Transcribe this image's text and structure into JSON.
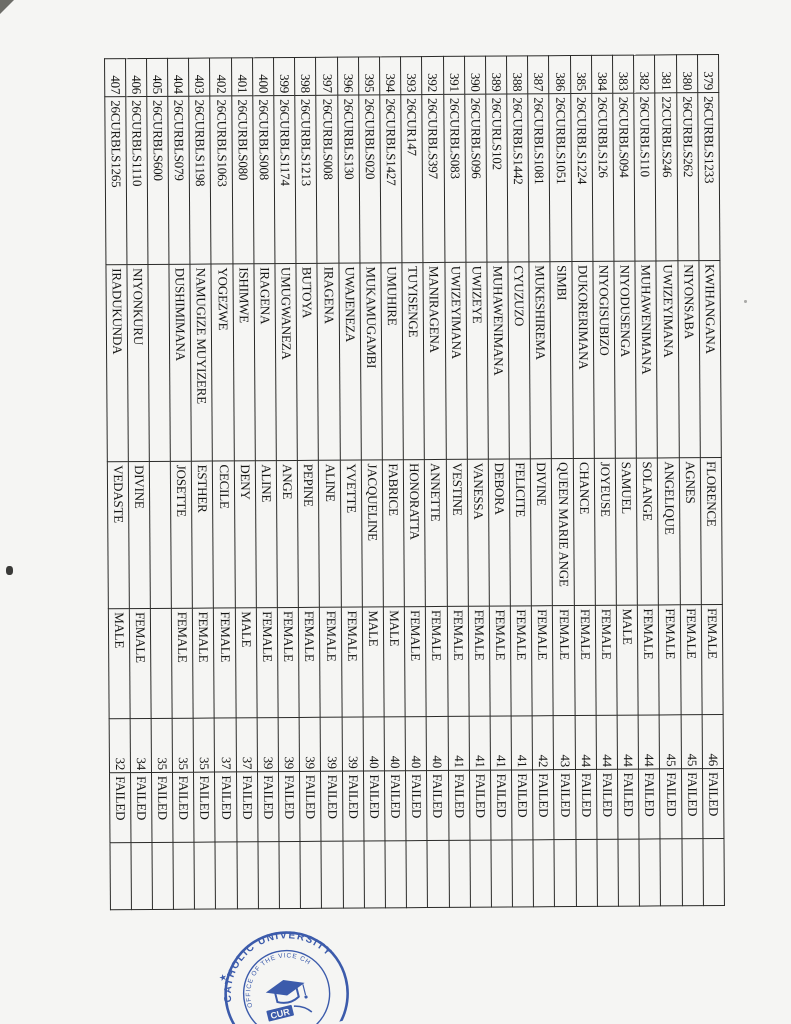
{
  "document": {
    "kind": "scanned results sheet",
    "orientation": "table rotated 90 degrees on portrait page"
  },
  "table": {
    "columns": [
      "no",
      "code",
      "last_name",
      "first_name",
      "gender",
      "marks",
      "status",
      "blank"
    ],
    "rows": [
      {
        "no": "379",
        "code": "26CURBLS1233",
        "last_name": "KWIHANGANA",
        "first_name": "FLORENCE",
        "gender": "FEMALE",
        "marks": "46",
        "status": "FAILED"
      },
      {
        "no": "380",
        "code": "26CURBLS262",
        "last_name": "NIYONSABA",
        "first_name": "AGNES",
        "gender": "FEMALE",
        "marks": "45",
        "status": "FAILED"
      },
      {
        "no": "381",
        "code": "22CURBLS246",
        "last_name": "UWIZEYIMANA",
        "first_name": "ANGELIQUE",
        "gender": "FEMALE",
        "marks": "45",
        "status": "FAILED"
      },
      {
        "no": "382",
        "code": "26CURBLS110",
        "last_name": "MUHAWENIMANA",
        "first_name": "SOLANGE",
        "gender": "FEMALE",
        "marks": "44",
        "status": "FAILED"
      },
      {
        "no": "383",
        "code": "26CURBLS094",
        "last_name": "NIYODUSENGA",
        "first_name": "SAMUEL",
        "gender": "MALE",
        "marks": "44",
        "status": "FAILED"
      },
      {
        "no": "384",
        "code": "26CURBLS126",
        "last_name": "NIYOGISUBIZO",
        "first_name": "JOYEUSE",
        "gender": "FEMALE",
        "marks": "44",
        "status": "FAILED"
      },
      {
        "no": "385",
        "code": "26CURBLS1224",
        "last_name": "DUKORERIMANA",
        "first_name": "CHANCE",
        "gender": "FEMALE",
        "marks": "44",
        "status": "FAILED"
      },
      {
        "no": "386",
        "code": "26CURBLS1051",
        "last_name": "SIMBI",
        "first_name": "QUEEN MARIE ANGE",
        "gender": "FEMALE",
        "marks": "43",
        "status": "FAILED"
      },
      {
        "no": "387",
        "code": "26CURBLS1081",
        "last_name": "MUKESHIREMA",
        "first_name": "DIVINE",
        "gender": "FEMALE",
        "marks": "42",
        "status": "FAILED"
      },
      {
        "no": "388",
        "code": "26CURBLS1442",
        "last_name": "CYUZUZO",
        "first_name": "FELICITE",
        "gender": "FEMALE",
        "marks": "41",
        "status": "FAILED"
      },
      {
        "no": "389",
        "code": "26CURLS102",
        "last_name": "MUHAWENIMANA",
        "first_name": "DEBORA",
        "gender": "FEMALE",
        "marks": "41",
        "status": "FAILED"
      },
      {
        "no": "390",
        "code": "26CURBLS096",
        "last_name": "UWIZEYE",
        "first_name": "VANESSA",
        "gender": "FEMALE",
        "marks": "41",
        "status": "FAILED"
      },
      {
        "no": "391",
        "code": "26CURBLS083",
        "last_name": "UWIZEYIMANA",
        "first_name": "VESTINE",
        "gender": "FEMALE",
        "marks": "41",
        "status": "FAILED"
      },
      {
        "no": "392",
        "code": "26CURBLS397",
        "last_name": "MANIRAGENA",
        "first_name": "ANNETTE",
        "gender": "FEMALE",
        "marks": "40",
        "status": "FAILED"
      },
      {
        "no": "393",
        "code": "26CUR147",
        "last_name": "TUYISENGE",
        "first_name": "HONORATTA",
        "gender": "FEMALE",
        "marks": "40",
        "status": "FAILED"
      },
      {
        "no": "394",
        "code": "26CURBLS1427",
        "last_name": "UMUHIRE",
        "first_name": "FABRICE",
        "gender": "MALE",
        "marks": "40",
        "status": "FAILED"
      },
      {
        "no": "395",
        "code": "26CURBLS020",
        "last_name": "MUKAMUGAMBI",
        "first_name": "JACQUELINE",
        "gender": "MALE",
        "marks": "40",
        "status": "FAILED"
      },
      {
        "no": "396",
        "code": "26CURBLS130",
        "last_name": "UWAJENEZA",
        "first_name": "YVETTE",
        "gender": "FEMALE",
        "marks": "39",
        "status": "FAILED"
      },
      {
        "no": "397",
        "code": "26CURBLS008",
        "last_name": "IRAGENA",
        "first_name": "ALINE",
        "gender": "FEMALE",
        "marks": "39",
        "status": "FAILED"
      },
      {
        "no": "398",
        "code": "26CURBLS1213",
        "last_name": "BUTOYA",
        "first_name": "PEPINE",
        "gender": "FEMALE",
        "marks": "39",
        "status": "FAILED"
      },
      {
        "no": "399",
        "code": "26CURBLS1174",
        "last_name": "UMUGWANEZA",
        "first_name": "ANGE",
        "gender": "FEMALE",
        "marks": "39",
        "status": "FAILED"
      },
      {
        "no": "400",
        "code": "26CURBLS008",
        "last_name": "IRAGENA",
        "first_name": "ALINE",
        "gender": "FEMALE",
        "marks": "39",
        "status": "FAILED"
      },
      {
        "no": "401",
        "code": "26CURBLS080",
        "last_name": "ISHIMWE",
        "first_name": "DENY",
        "gender": "MALE",
        "marks": "37",
        "status": "FAILED"
      },
      {
        "no": "402",
        "code": "26CURBLS1063",
        "last_name": "YOGEZWE",
        "first_name": "CECILE",
        "gender": "FEMALE",
        "marks": "37",
        "status": "FAILED"
      },
      {
        "no": "403",
        "code": "26CURBLS1198",
        "last_name": "NAMUGIZE MUYIZERE",
        "first_name": "ESTHER",
        "gender": "FEMALE",
        "marks": "35",
        "status": "FAILED"
      },
      {
        "no": "404",
        "code": "26CURBLS079",
        "last_name": "DUSHIMIMANA",
        "first_name": "JOSETTE",
        "gender": "FEMALE",
        "marks": "35",
        "status": "FAILED"
      },
      {
        "no": "405",
        "code": "26CURBLS600",
        "last_name": "",
        "first_name": "",
        "gender": "",
        "marks": "35",
        "status": "FAILED"
      },
      {
        "no": "406",
        "code": "26CURBLS1110",
        "last_name": "NIYONKURU",
        "first_name": "DIVINE",
        "gender": "FEMALE",
        "marks": "34",
        "status": "FAILED"
      },
      {
        "no": "407",
        "code": "26CURBLS1265",
        "last_name": "IRADUKUNDA",
        "first_name": "VEDASTE",
        "gender": "MALE",
        "marks": "32",
        "status": "FAILED"
      }
    ]
  },
  "stamp": {
    "outer_text": "CATHOLIC UNIVERSITY",
    "inner_text": "OFFICE OF THE VICE CH",
    "center_text": "CUR",
    "star": "★",
    "color": "#2d4fa5"
  }
}
